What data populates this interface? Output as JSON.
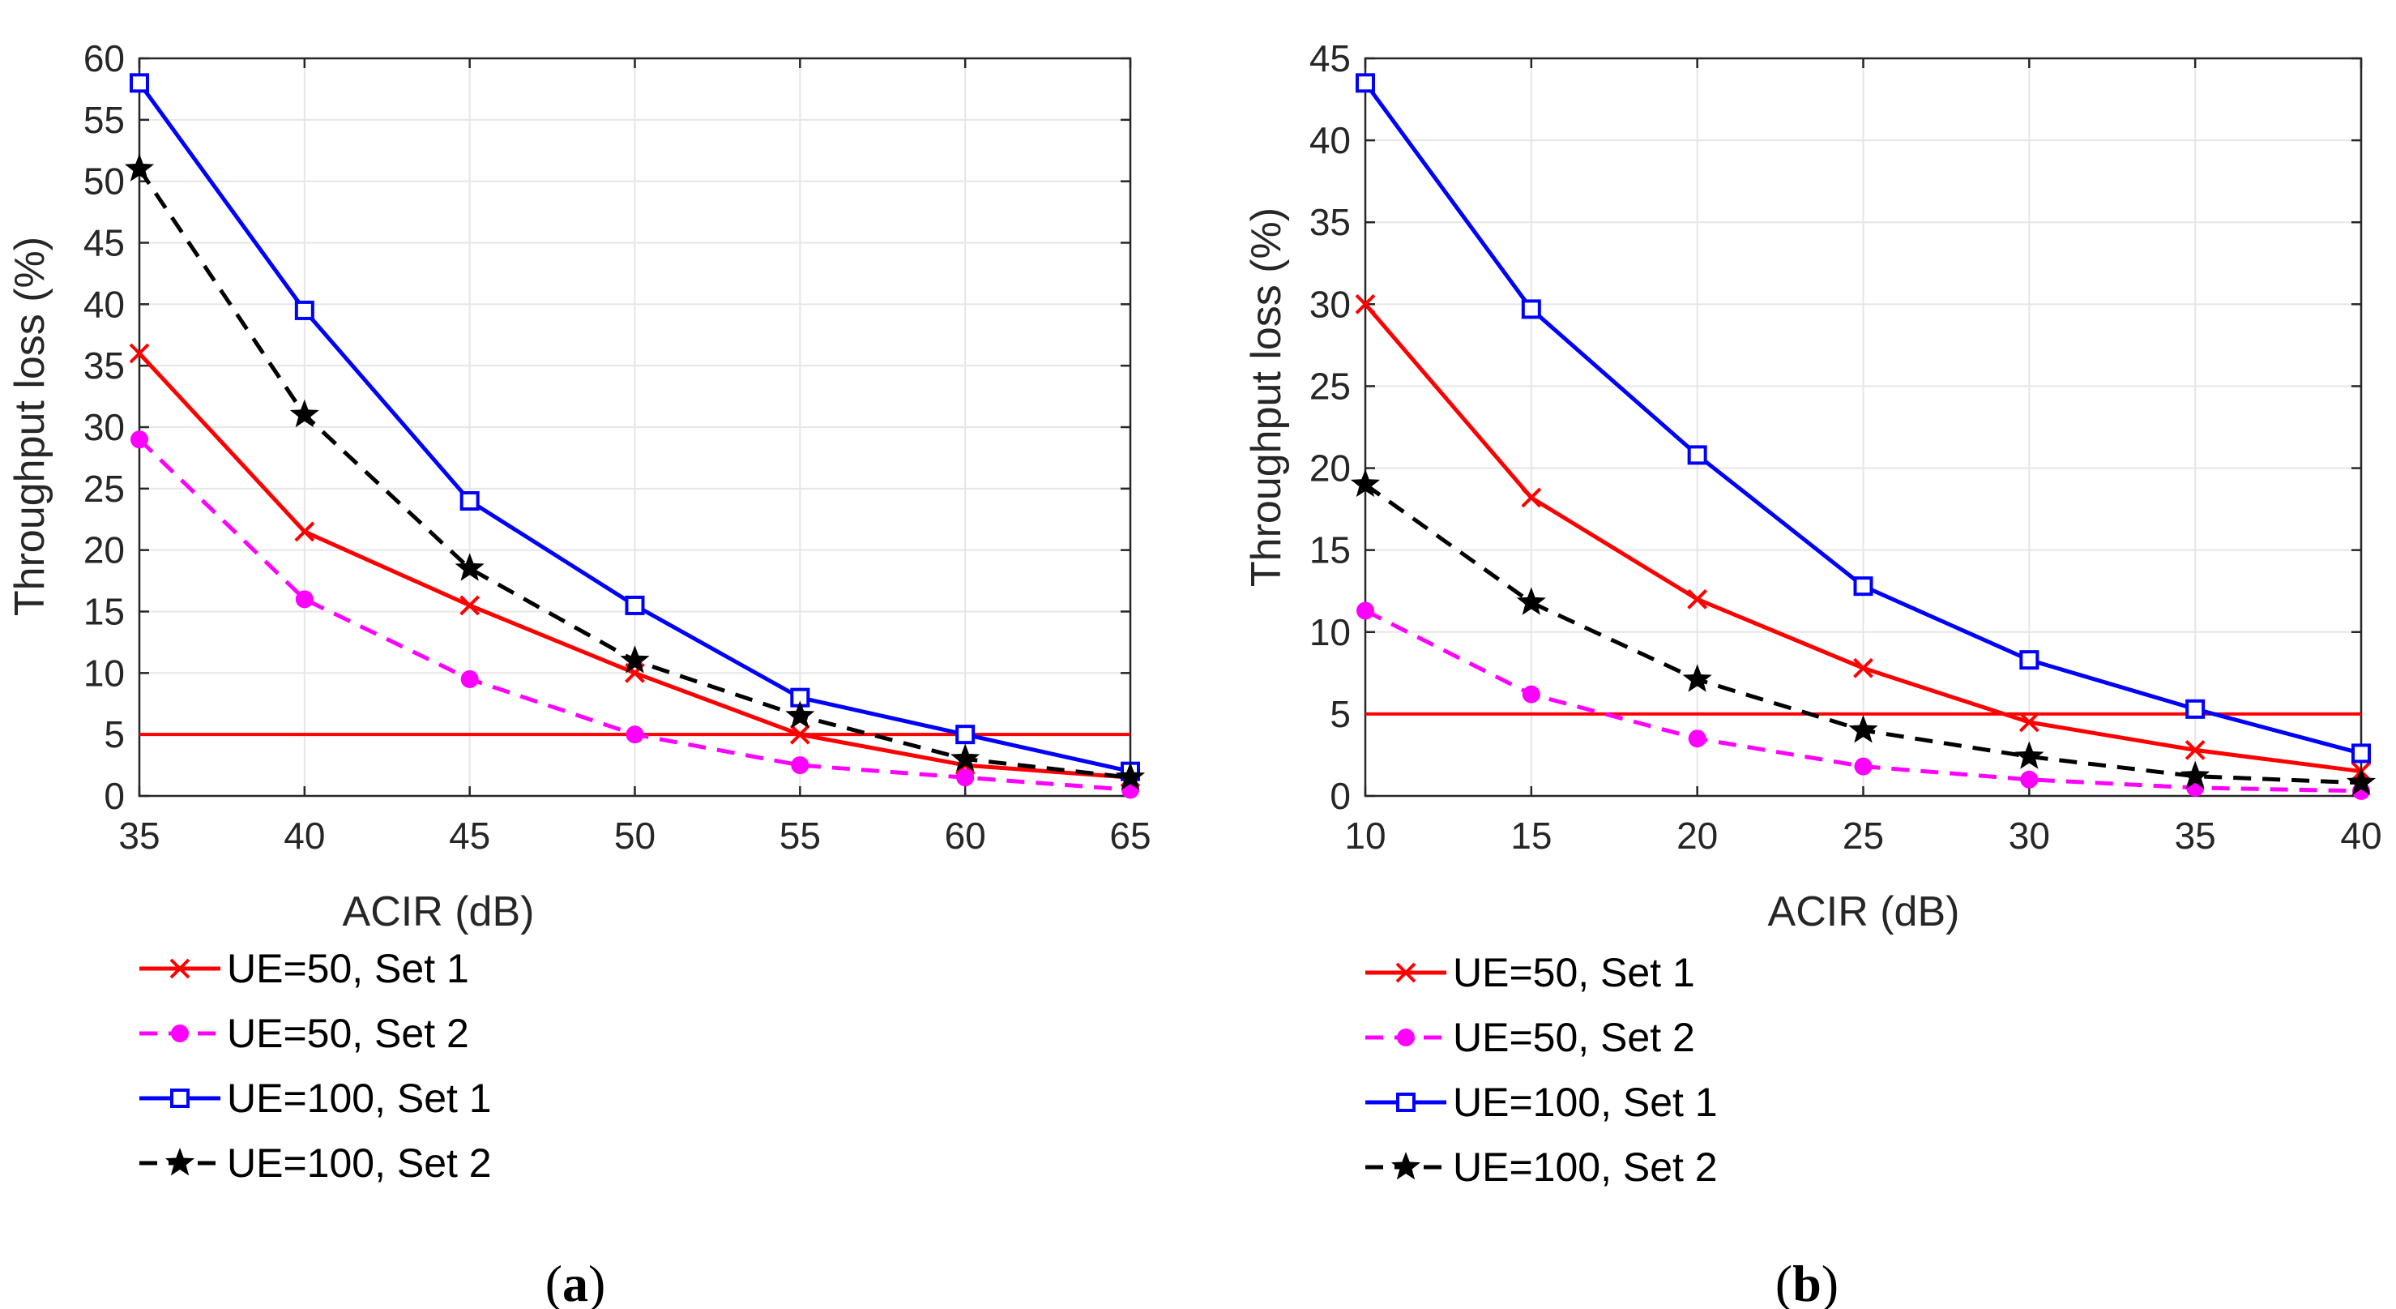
{
  "colors": {
    "red": "#ff0000",
    "magenta": "#ff00ff",
    "blue": "#0000ff",
    "black": "#000000",
    "grid": "#e6e6e6",
    "axis": "#262626"
  },
  "chart_data": [
    {
      "panel": "a",
      "caption": {
        "open": "(",
        "letter": "a",
        "close": ")"
      },
      "type": "line",
      "title": "",
      "xlabel": "ACIR (dB)",
      "ylabel": "Throughput loss (%)",
      "xlim": [
        35,
        65
      ],
      "ylim": [
        0,
        60
      ],
      "xticks": [
        35,
        40,
        45,
        50,
        55,
        60,
        65
      ],
      "yticks": [
        0,
        5,
        10,
        15,
        20,
        25,
        30,
        35,
        40,
        45,
        50,
        55,
        60
      ],
      "grid": true,
      "x": [
        35,
        40,
        45,
        50,
        55,
        60,
        65
      ],
      "threshold": 5,
      "series": [
        {
          "name": "UE=50, Set 1",
          "color": "red",
          "line": "solid",
          "marker": "x",
          "values": [
            36,
            21.5,
            15.5,
            10,
            5,
            2.5,
            1.5
          ]
        },
        {
          "name": "UE=50, Set 2",
          "color": "magenta",
          "line": "dashed",
          "marker": "dot",
          "values": [
            29,
            16,
            9.5,
            5,
            2.5,
            1.5,
            0.5
          ]
        },
        {
          "name": "UE=100, Set 1",
          "color": "blue",
          "line": "solid",
          "marker": "square",
          "values": [
            58,
            39.5,
            24,
            15.5,
            8,
            5,
            2
          ]
        },
        {
          "name": "UE=100, Set 2",
          "color": "black",
          "line": "dashed",
          "marker": "star",
          "values": [
            51,
            31,
            18.5,
            11,
            6.5,
            3,
            1.5
          ]
        }
      ]
    },
    {
      "panel": "b",
      "caption": {
        "open": "(",
        "letter": "b",
        "close": ")"
      },
      "type": "line",
      "title": "",
      "xlabel": "ACIR (dB)",
      "ylabel": "Throughput loss (%)",
      "xlim": [
        10,
        40
      ],
      "ylim": [
        0,
        45
      ],
      "xticks": [
        10,
        15,
        20,
        25,
        30,
        35,
        40
      ],
      "yticks": [
        0,
        5,
        10,
        15,
        20,
        25,
        30,
        35,
        40,
        45
      ],
      "grid": true,
      "x": [
        10,
        15,
        20,
        25,
        30,
        35,
        40
      ],
      "threshold": 5,
      "series": [
        {
          "name": "UE=50, Set 1",
          "color": "red",
          "line": "solid",
          "marker": "x",
          "values": [
            30,
            18.2,
            12,
            7.8,
            4.5,
            2.8,
            1.5
          ]
        },
        {
          "name": "UE=50, Set 2",
          "color": "magenta",
          "line": "dashed",
          "marker": "dot",
          "values": [
            11.3,
            6.2,
            3.5,
            1.8,
            1,
            0.5,
            0.3
          ]
        },
        {
          "name": "UE=100, Set 1",
          "color": "blue",
          "line": "solid",
          "marker": "square",
          "values": [
            43.5,
            29.7,
            20.8,
            12.8,
            8.3,
            5.3,
            2.6
          ]
        },
        {
          "name": "UE=100, Set 2",
          "color": "black",
          "line": "dashed",
          "marker": "star",
          "values": [
            19,
            11.8,
            7.1,
            4,
            2.4,
            1.2,
            0.8
          ]
        }
      ]
    }
  ]
}
